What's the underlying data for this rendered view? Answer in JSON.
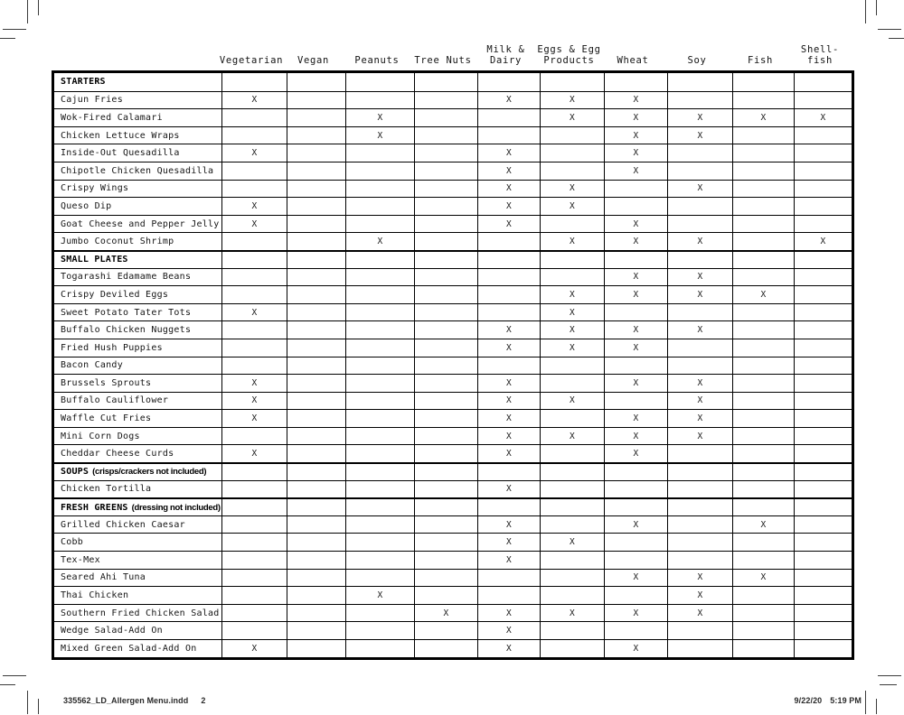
{
  "table": {
    "mark_symbol": "X",
    "columns": [
      "Vegetarian",
      "Vegan",
      "Peanuts",
      "Tree Nuts",
      "Milk &\nDairy",
      "Eggs & Egg\nProducts",
      "Wheat",
      "Soy",
      "Fish",
      "Shell-\nfish"
    ],
    "rows": [
      {
        "type": "section",
        "label": "STARTERS",
        "note": ""
      },
      {
        "type": "item",
        "label": "Cajun Fries",
        "marks": [
          1,
          0,
          0,
          0,
          1,
          1,
          1,
          0,
          0,
          0
        ]
      },
      {
        "type": "item",
        "label": "Wok-Fired Calamari",
        "marks": [
          0,
          0,
          1,
          0,
          0,
          1,
          1,
          1,
          1,
          1
        ]
      },
      {
        "type": "item",
        "label": "Chicken Lettuce Wraps",
        "marks": [
          0,
          0,
          1,
          0,
          0,
          0,
          1,
          1,
          0,
          0
        ]
      },
      {
        "type": "item",
        "label": "Inside-Out Quesadilla",
        "marks": [
          1,
          0,
          0,
          0,
          1,
          0,
          1,
          0,
          0,
          0
        ]
      },
      {
        "type": "item",
        "label": "Chipotle Chicken Quesadilla",
        "marks": [
          0,
          0,
          0,
          0,
          1,
          0,
          1,
          0,
          0,
          0
        ]
      },
      {
        "type": "item",
        "label": "Crispy Wings",
        "marks": [
          0,
          0,
          0,
          0,
          1,
          1,
          0,
          1,
          0,
          0
        ]
      },
      {
        "type": "item",
        "label": "Queso Dip",
        "marks": [
          1,
          0,
          0,
          0,
          1,
          1,
          0,
          0,
          0,
          0
        ]
      },
      {
        "type": "item",
        "label": "Goat Cheese and Pepper Jelly",
        "marks": [
          1,
          0,
          0,
          0,
          1,
          0,
          1,
          0,
          0,
          0
        ]
      },
      {
        "type": "item",
        "label": "Jumbo Coconut Shrimp",
        "marks": [
          0,
          0,
          1,
          0,
          0,
          1,
          1,
          1,
          0,
          1
        ]
      },
      {
        "type": "section",
        "label": "SMALL PLATES",
        "note": ""
      },
      {
        "type": "item",
        "label": "Togarashi Edamame Beans",
        "marks": [
          0,
          0,
          0,
          0,
          0,
          0,
          1,
          1,
          0,
          0
        ]
      },
      {
        "type": "item",
        "label": "Crispy Deviled Eggs",
        "marks": [
          0,
          0,
          0,
          0,
          0,
          1,
          1,
          1,
          1,
          0
        ]
      },
      {
        "type": "item",
        "label": "Sweet Potato Tater Tots",
        "marks": [
          1,
          0,
          0,
          0,
          0,
          1,
          0,
          0,
          0,
          0
        ]
      },
      {
        "type": "item",
        "label": "Buffalo Chicken Nuggets",
        "marks": [
          0,
          0,
          0,
          0,
          1,
          1,
          1,
          1,
          0,
          0
        ]
      },
      {
        "type": "item",
        "label": "Fried Hush Puppies",
        "marks": [
          0,
          0,
          0,
          0,
          1,
          1,
          1,
          0,
          0,
          0
        ]
      },
      {
        "type": "item",
        "label": "Bacon Candy",
        "marks": [
          0,
          0,
          0,
          0,
          0,
          0,
          0,
          0,
          0,
          0
        ]
      },
      {
        "type": "item",
        "label": "Brussels Sprouts",
        "marks": [
          1,
          0,
          0,
          0,
          1,
          0,
          1,
          1,
          0,
          0
        ]
      },
      {
        "type": "item",
        "label": "Buffalo Cauliflower",
        "marks": [
          1,
          0,
          0,
          0,
          1,
          1,
          0,
          1,
          0,
          0
        ]
      },
      {
        "type": "item",
        "label": "Waffle Cut Fries",
        "marks": [
          1,
          0,
          0,
          0,
          1,
          0,
          1,
          1,
          0,
          0
        ]
      },
      {
        "type": "item",
        "label": "Mini Corn Dogs",
        "marks": [
          0,
          0,
          0,
          0,
          1,
          1,
          1,
          1,
          0,
          0
        ]
      },
      {
        "type": "item",
        "label": "Cheddar Cheese Curds",
        "marks": [
          1,
          0,
          0,
          0,
          1,
          0,
          1,
          0,
          0,
          0
        ]
      },
      {
        "type": "section",
        "label": "SOUPS",
        "note": "(crisps/crackers not included)"
      },
      {
        "type": "item",
        "label": "Chicken Tortilla",
        "marks": [
          0,
          0,
          0,
          0,
          1,
          0,
          0,
          0,
          0,
          0
        ]
      },
      {
        "type": "section",
        "label": "FRESH GREENS",
        "note": "(dressing not included)"
      },
      {
        "type": "item",
        "label": "Grilled Chicken Caesar",
        "marks": [
          0,
          0,
          0,
          0,
          1,
          0,
          1,
          0,
          1,
          0
        ]
      },
      {
        "type": "item",
        "label": "Cobb",
        "marks": [
          0,
          0,
          0,
          0,
          1,
          1,
          0,
          0,
          0,
          0
        ]
      },
      {
        "type": "item",
        "label": "Tex-Mex",
        "marks": [
          0,
          0,
          0,
          0,
          1,
          0,
          0,
          0,
          0,
          0
        ]
      },
      {
        "type": "item",
        "label": "Seared Ahi Tuna",
        "marks": [
          0,
          0,
          0,
          0,
          0,
          0,
          1,
          1,
          1,
          0
        ]
      },
      {
        "type": "item",
        "label": "Thai Chicken",
        "marks": [
          0,
          0,
          1,
          0,
          0,
          0,
          0,
          1,
          0,
          0
        ]
      },
      {
        "type": "item",
        "label": "Southern Fried Chicken Salad",
        "marks": [
          0,
          0,
          0,
          1,
          1,
          1,
          1,
          1,
          0,
          0
        ]
      },
      {
        "type": "item",
        "label": "Wedge Salad-Add On",
        "marks": [
          0,
          0,
          0,
          0,
          1,
          0,
          0,
          0,
          0,
          0
        ]
      },
      {
        "type": "item",
        "label": "Mixed Green Salad-Add On",
        "marks": [
          1,
          0,
          0,
          0,
          1,
          0,
          1,
          0,
          0,
          0
        ]
      }
    ]
  },
  "footer": {
    "filename": "335562_LD_Allergen Menu.indd",
    "page": "2",
    "date": "9/22/20",
    "time": "5:19 PM"
  }
}
